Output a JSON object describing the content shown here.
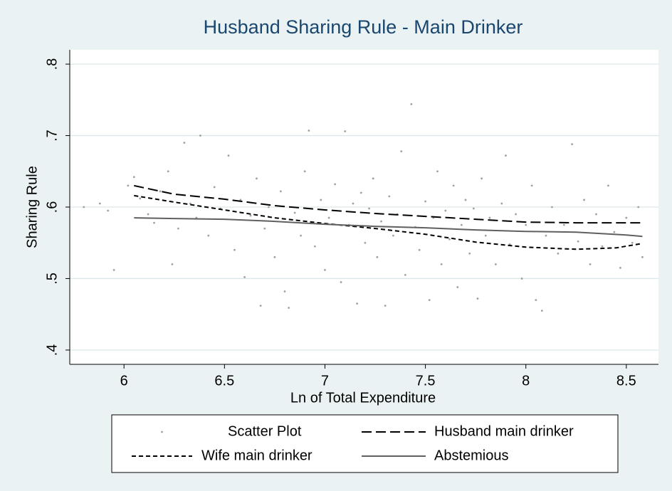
{
  "chart_data": {
    "type": "scatter",
    "title": "Husband Sharing Rule - Main Drinker",
    "x_label": "Ln of Total Expenditure",
    "y_label": "Sharing Rule",
    "xlim": [
      5.73,
      8.66
    ],
    "ylim": [
      0.38,
      0.82
    ],
    "xticks": [
      6,
      6.5,
      7,
      7.5,
      8,
      8.5
    ],
    "yticks": [
      {
        "value": 0.4,
        "label": ".4"
      },
      {
        "value": 0.5,
        "label": ".5"
      },
      {
        "value": 0.6,
        "label": ".6"
      },
      {
        "value": 0.7,
        "label": ".7"
      },
      {
        "value": 0.8,
        "label": ".8"
      }
    ],
    "grid": true,
    "legend": "bottom",
    "series": [
      {
        "name": "Scatter Plot",
        "type": "scatter",
        "color": "#a0a0a0",
        "x": [
          5.8,
          5.88,
          5.92,
          5.95,
          6.02,
          6.05,
          6.08,
          6.12,
          6.15,
          6.18,
          6.22,
          6.24,
          6.27,
          6.3,
          6.33,
          6.36,
          6.38,
          6.42,
          6.45,
          6.48,
          6.52,
          6.55,
          6.58,
          6.6,
          6.63,
          6.66,
          6.68,
          6.7,
          6.72,
          6.75,
          6.78,
          6.8,
          6.82,
          6.85,
          6.88,
          6.9,
          6.92,
          6.95,
          6.98,
          7.0,
          7.02,
          7.05,
          7.08,
          7.1,
          7.12,
          7.14,
          7.16,
          7.18,
          7.2,
          7.22,
          7.24,
          7.26,
          7.28,
          7.3,
          7.32,
          7.34,
          7.36,
          7.38,
          7.4,
          7.43,
          7.45,
          7.47,
          7.5,
          7.52,
          7.54,
          7.56,
          7.58,
          7.6,
          7.62,
          7.64,
          7.66,
          7.68,
          7.7,
          7.72,
          7.74,
          7.76,
          7.78,
          7.8,
          7.82,
          7.85,
          7.88,
          7.9,
          7.92,
          7.95,
          7.98,
          8.0,
          8.03,
          8.05,
          8.08,
          8.1,
          8.13,
          8.16,
          8.19,
          8.23,
          8.26,
          8.29,
          8.32,
          8.35,
          8.38,
          8.41,
          8.44,
          8.47,
          8.5,
          8.53,
          8.56,
          8.58
        ],
        "values": [
          0.6,
          0.605,
          0.595,
          0.512,
          0.63,
          0.642,
          0.612,
          0.59,
          0.578,
          0.622,
          0.65,
          0.52,
          0.57,
          0.69,
          0.605,
          0.585,
          0.7,
          0.56,
          0.628,
          0.598,
          0.672,
          0.54,
          0.61,
          0.502,
          0.588,
          0.64,
          0.462,
          0.57,
          0.6,
          0.53,
          0.622,
          0.482,
          0.459,
          0.592,
          0.56,
          0.65,
          0.707,
          0.545,
          0.61,
          0.512,
          0.585,
          0.632,
          0.495,
          0.706,
          0.575,
          0.605,
          0.465,
          0.62,
          0.55,
          0.598,
          0.64,
          0.53,
          0.58,
          0.462,
          0.615,
          0.56,
          0.59,
          0.678,
          0.505,
          0.744,
          0.572,
          0.54,
          0.608,
          0.47,
          0.585,
          0.65,
          0.52,
          0.595,
          0.555,
          0.63,
          0.488,
          0.575,
          0.61,
          0.535,
          0.598,
          0.472,
          0.64,
          0.56,
          0.585,
          0.52,
          0.605,
          0.672,
          0.548,
          0.59,
          0.5,
          0.575,
          0.63,
          0.47,
          0.455,
          0.56,
          0.6,
          0.535,
          0.575,
          0.688,
          0.552,
          0.61,
          0.52,
          0.59,
          0.545,
          0.63,
          0.565,
          0.515,
          0.585,
          0.55,
          0.6,
          0.53
        ]
      },
      {
        "name": "Husband main drinker",
        "type": "line",
        "color": "#000000",
        "dash": "long",
        "x": [
          6.05,
          6.25,
          6.5,
          6.75,
          7,
          7.25,
          7.5,
          7.75,
          8,
          8.25,
          8.5,
          8.58
        ],
        "values": [
          0.63,
          0.618,
          0.611,
          0.602,
          0.596,
          0.591,
          0.587,
          0.583,
          0.579,
          0.578,
          0.578,
          0.578
        ]
      },
      {
        "name": "Wife main drinker",
        "type": "line",
        "color": "#000000",
        "dash": "short",
        "x": [
          6.05,
          6.25,
          6.5,
          6.75,
          7,
          7.25,
          7.5,
          7.75,
          8,
          8.25,
          8.45,
          8.58
        ],
        "values": [
          0.616,
          0.607,
          0.596,
          0.585,
          0.577,
          0.57,
          0.562,
          0.551,
          0.544,
          0.541,
          0.543,
          0.549
        ]
      },
      {
        "name": "Abstemious",
        "type": "line",
        "color": "#606060",
        "dash": "solid",
        "x": [
          6.05,
          6.25,
          6.5,
          6.75,
          7,
          7.25,
          7.5,
          7.75,
          8,
          8.25,
          8.5,
          8.58
        ],
        "values": [
          0.585,
          0.584,
          0.583,
          0.58,
          0.576,
          0.573,
          0.571,
          0.568,
          0.566,
          0.565,
          0.561,
          0.559
        ]
      }
    ]
  }
}
